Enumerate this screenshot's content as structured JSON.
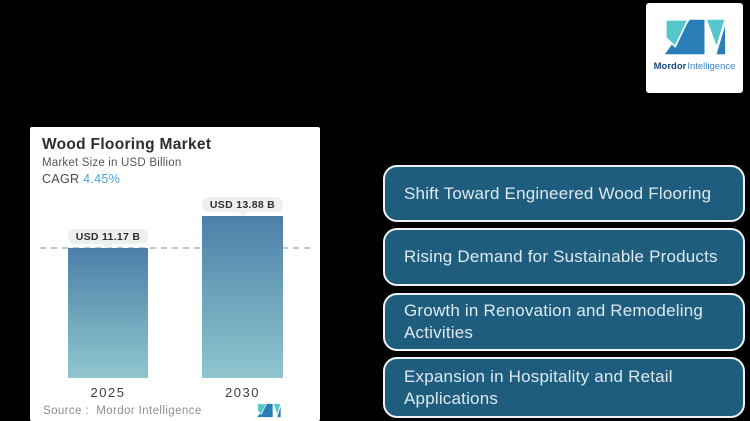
{
  "brand": {
    "name_bold": "Mordor",
    "name_light": "Intelligence",
    "teal": "#55c7cd",
    "blue": "#2b7db8"
  },
  "chart": {
    "title": "Wood Flooring Market",
    "subtitle": "Market Size in USD Billion",
    "cagr_label": "CAGR",
    "cagr_value": "4.45%",
    "cagr_value_color": "#4ba3d9",
    "source_line": "Source :  Mordor Intelligence"
  },
  "chart_data": {
    "type": "bar",
    "categories": [
      "2025",
      "2030"
    ],
    "values": [
      11.17,
      13.88
    ],
    "value_labels": [
      "USD 11.17 B",
      "USD 13.88 B"
    ],
    "title": "Wood Flooring Market",
    "subtitle": "Market Size in USD Billion",
    "cagr": "4.45%",
    "unit": "USD Billion",
    "xlabel": "",
    "ylabel": "Market Size in USD Billion",
    "ylim": [
      0,
      13.88
    ],
    "grid": "single dashed horizontal reference line at first bar value (11.17)",
    "legend": "none",
    "bar_gradient_top": "#4d7ea9",
    "bar_gradient_bottom": "#90c5cf"
  },
  "trends": {
    "items": [
      {
        "label": "Shift Toward Engineered Wood Flooring"
      },
      {
        "label": "Rising Demand for Sustainable Products"
      },
      {
        "label": "Growth in Renovation and Remodeling Activities"
      },
      {
        "label": "Expansion in Hospitality and Retail Applications"
      }
    ]
  }
}
